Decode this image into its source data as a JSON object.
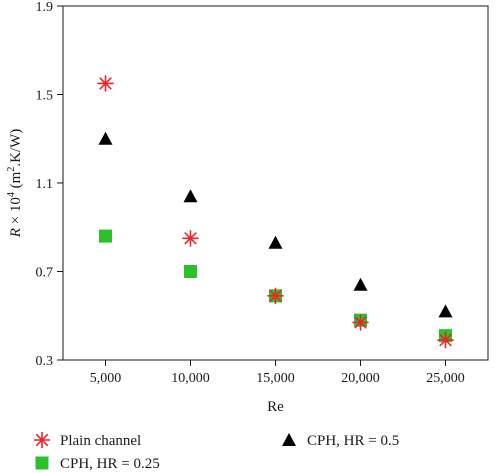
{
  "chart_data": {
    "type": "scatter",
    "x": [
      5000,
      10000,
      15000,
      20000,
      25000
    ],
    "x_tick_labels": [
      "5,000",
      "10,000",
      "15,000",
      "20,000",
      "25,000"
    ],
    "xlabel": "Re",
    "ylabel": {
      "symbol": "R",
      "times": " × 10",
      "exponent": "4",
      "unit_prefix": " (m",
      "unit_exponent": "2",
      "unit_suffix": ".K/W)"
    },
    "xlim": [
      2500,
      27500
    ],
    "ylim": [
      0.3,
      1.9
    ],
    "y_ticks": [
      0.3,
      0.7,
      1.1,
      1.5,
      1.9
    ],
    "y_tick_labels": [
      "0.3",
      "0.7",
      "1.1",
      "1.5",
      "1.9"
    ],
    "grid": false,
    "legend_position": "bottom",
    "series": [
      {
        "name": "Plain channel",
        "marker": "asterisk",
        "color": "#e8262b",
        "values": [
          1.55,
          0.85,
          0.59,
          0.47,
          0.39
        ]
      },
      {
        "name": "CPH, HR = 0.25",
        "marker": "square",
        "color": "#2dbf2d",
        "values": [
          0.86,
          0.7,
          0.59,
          0.48,
          0.41
        ]
      },
      {
        "name": "CPH, HR = 0.5",
        "marker": "triangle",
        "color": "#000000",
        "values": [
          1.3,
          1.04,
          0.83,
          0.64,
          0.52
        ]
      }
    ]
  }
}
